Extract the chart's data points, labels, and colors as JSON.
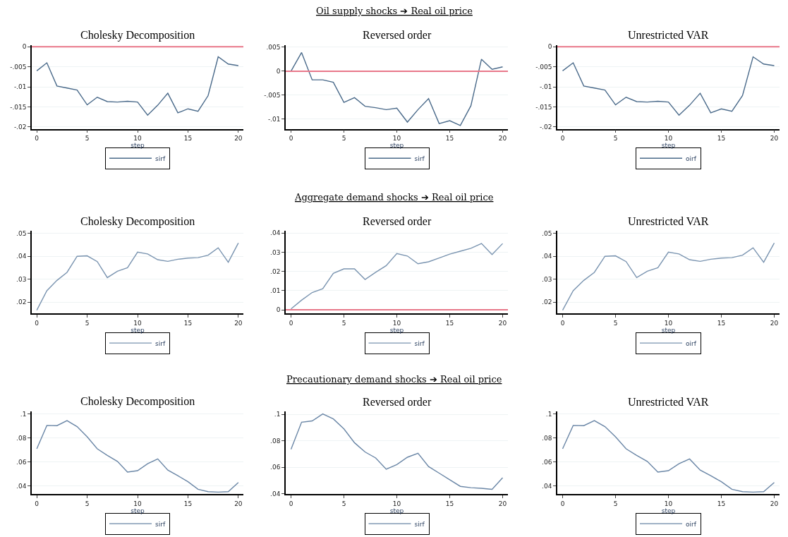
{
  "chart_data": [
    {
      "type": "line",
      "title": "Cholesky Decomposition",
      "annotations": [
        "Oil supply shocks ➔ Real oil price"
      ],
      "xlabel": "step",
      "x": [
        0,
        1,
        2,
        3,
        4,
        5,
        6,
        7,
        8,
        9,
        10,
        11,
        12,
        13,
        14,
        15,
        16,
        17,
        18,
        19,
        20
      ],
      "xlim": [
        -0.5,
        20.5
      ],
      "xticks": [
        0,
        5,
        10,
        15,
        20
      ],
      "ylim": [
        -0.0205,
        0.0005
      ],
      "yticks": [
        {
          "value": 0,
          "label": "0"
        },
        {
          "value": -0.005,
          "label": "-.005"
        },
        {
          "value": -0.01,
          "label": "-.01"
        },
        {
          "value": -0.015,
          "label": "-.015"
        },
        {
          "value": -0.02,
          "label": "-.02"
        }
      ],
      "grid": "y",
      "legend": "bottom",
      "ref_lines": [
        {
          "axis": "y",
          "value": 0,
          "color": "#e8788a"
        }
      ],
      "series": [
        {
          "name": "sirf",
          "color": "#4a6a8a",
          "values": [
            -0.006,
            -0.004,
            -0.0098,
            -0.0103,
            -0.0108,
            -0.0145,
            -0.0126,
            -0.0137,
            -0.0138,
            -0.0136,
            -0.0138,
            -0.0171,
            -0.0146,
            -0.0116,
            -0.0165,
            -0.0155,
            -0.0161,
            -0.0122,
            -0.0025,
            -0.0043,
            -0.0047
          ]
        }
      ]
    },
    {
      "type": "line",
      "title": "Reversed order",
      "xlabel": "step",
      "x": [
        0,
        1,
        2,
        3,
        4,
        5,
        6,
        7,
        8,
        9,
        10,
        11,
        12,
        13,
        14,
        15,
        16,
        17,
        18,
        19,
        20
      ],
      "xlim": [
        -0.5,
        20.5
      ],
      "xticks": [
        0,
        5,
        10,
        15,
        20
      ],
      "ylim": [
        -0.012,
        0.0055
      ],
      "yticks": [
        {
          "value": 0.005,
          "label": ".005"
        },
        {
          "value": 0,
          "label": "0"
        },
        {
          "value": -0.005,
          "label": "-.005"
        },
        {
          "value": -0.01,
          "label": "-.01"
        }
      ],
      "grid": "y",
      "legend": "bottom",
      "ref_lines": [
        {
          "axis": "y",
          "value": 0,
          "color": "#e8788a"
        }
      ],
      "series": [
        {
          "name": "sirf",
          "color": "#4a6a8a",
          "values": [
            0,
            0.0039,
            -0.0018,
            -0.0018,
            -0.0023,
            -0.0065,
            -0.0055,
            -0.0073,
            -0.0076,
            -0.008,
            -0.0077,
            -0.0106,
            -0.008,
            -0.0057,
            -0.0109,
            -0.0103,
            -0.0113,
            -0.0072,
            0.0025,
            0.0004,
            0.0009
          ]
        }
      ]
    },
    {
      "type": "line",
      "title": "Unrestricted VAR",
      "xlabel": "step",
      "x": [
        0,
        1,
        2,
        3,
        4,
        5,
        6,
        7,
        8,
        9,
        10,
        11,
        12,
        13,
        14,
        15,
        16,
        17,
        18,
        19,
        20
      ],
      "xlim": [
        -0.5,
        20.5
      ],
      "xticks": [
        0,
        5,
        10,
        15,
        20
      ],
      "ylim": [
        -0.0205,
        0.0005
      ],
      "yticks": [
        {
          "value": 0,
          "label": "0"
        },
        {
          "value": -0.005,
          "label": "-.005"
        },
        {
          "value": -0.01,
          "label": "-.01"
        },
        {
          "value": -0.015,
          "label": "-.015"
        },
        {
          "value": -0.02,
          "label": "-.02"
        }
      ],
      "grid": "y",
      "legend": "bottom",
      "ref_lines": [
        {
          "axis": "y",
          "value": 0,
          "color": "#e8788a"
        }
      ],
      "series": [
        {
          "name": "oirf",
          "color": "#4a6a8a",
          "values": [
            -0.006,
            -0.004,
            -0.0098,
            -0.0103,
            -0.0108,
            -0.0145,
            -0.0126,
            -0.0137,
            -0.0138,
            -0.0136,
            -0.0138,
            -0.0171,
            -0.0146,
            -0.0116,
            -0.0165,
            -0.0155,
            -0.0161,
            -0.0122,
            -0.0025,
            -0.0043,
            -0.0047
          ]
        }
      ]
    },
    {
      "type": "line",
      "title": "Cholesky Decomposition",
      "annotations": [
        "Aggregate demand shocks ➔ Real oil price"
      ],
      "xlabel": "step",
      "x": [
        0,
        1,
        2,
        3,
        4,
        5,
        6,
        7,
        8,
        9,
        10,
        11,
        12,
        13,
        14,
        15,
        16,
        17,
        18,
        19,
        20
      ],
      "xlim": [
        -0.5,
        20.5
      ],
      "xticks": [
        0,
        5,
        10,
        15,
        20
      ],
      "ylim": [
        0.015,
        0.051
      ],
      "yticks": [
        {
          "value": 0.02,
          "label": ".02"
        },
        {
          "value": 0.03,
          "label": ".03"
        },
        {
          "value": 0.04,
          "label": ".04"
        },
        {
          "value": 0.05,
          "label": ".05"
        }
      ],
      "grid": "y",
      "legend": "bottom",
      "series": [
        {
          "name": "sirf",
          "color": "#7a94b0",
          "values": [
            0.0165,
            0.025,
            0.0295,
            0.033,
            0.04,
            0.0402,
            0.0377,
            0.0307,
            0.0335,
            0.035,
            0.0418,
            0.041,
            0.0385,
            0.0378,
            0.0387,
            0.0392,
            0.0394,
            0.0405,
            0.0437,
            0.0374,
            0.0458
          ]
        }
      ]
    },
    {
      "type": "line",
      "title": "Reversed order",
      "xlabel": "step",
      "x": [
        0,
        1,
        2,
        3,
        4,
        5,
        6,
        7,
        8,
        9,
        10,
        11,
        12,
        13,
        14,
        15,
        16,
        17,
        18,
        19,
        20
      ],
      "xlim": [
        -0.5,
        20.5
      ],
      "xticks": [
        0,
        5,
        10,
        15,
        20
      ],
      "ylim": [
        -0.002,
        0.041
      ],
      "yticks": [
        {
          "value": 0,
          "label": "0"
        },
        {
          "value": 0.01,
          "label": ".01"
        },
        {
          "value": 0.02,
          "label": ".02"
        },
        {
          "value": 0.03,
          "label": ".03"
        },
        {
          "value": 0.04,
          "label": ".04"
        }
      ],
      "grid": "y",
      "legend": "bottom",
      "ref_lines": [
        {
          "axis": "y",
          "value": 0,
          "color": "#e8788a"
        }
      ],
      "series": [
        {
          "name": "sirf",
          "color": "#7a94b0",
          "values": [
            0.0005,
            0.005,
            0.009,
            0.011,
            0.019,
            0.0213,
            0.0213,
            0.0158,
            0.0195,
            0.023,
            0.0293,
            0.028,
            0.024,
            0.025,
            0.027,
            0.029,
            0.0305,
            0.032,
            0.0345,
            0.0288,
            0.0345
          ]
        }
      ]
    },
    {
      "type": "line",
      "title": "Unrestricted VAR",
      "xlabel": "step",
      "x": [
        0,
        1,
        2,
        3,
        4,
        5,
        6,
        7,
        8,
        9,
        10,
        11,
        12,
        13,
        14,
        15,
        16,
        17,
        18,
        19,
        20
      ],
      "xlim": [
        -0.5,
        20.5
      ],
      "xticks": [
        0,
        5,
        10,
        15,
        20
      ],
      "ylim": [
        0.015,
        0.051
      ],
      "yticks": [
        {
          "value": 0.02,
          "label": ".02"
        },
        {
          "value": 0.03,
          "label": ".03"
        },
        {
          "value": 0.04,
          "label": ".04"
        },
        {
          "value": 0.05,
          "label": ".05"
        }
      ],
      "grid": "y",
      "legend": "bottom",
      "series": [
        {
          "name": "oirf",
          "color": "#7a94b0",
          "values": [
            0.0165,
            0.025,
            0.0295,
            0.033,
            0.04,
            0.0402,
            0.0377,
            0.0307,
            0.0335,
            0.035,
            0.0418,
            0.041,
            0.0385,
            0.0378,
            0.0387,
            0.0392,
            0.0394,
            0.0405,
            0.0437,
            0.0374,
            0.0458
          ]
        }
      ]
    },
    {
      "type": "line",
      "title": "Cholesky Decomposition",
      "annotations": [
        "Precautionary demand shocks ➔ Real oil price"
      ],
      "xlabel": "step",
      "x": [
        0,
        1,
        2,
        3,
        4,
        5,
        6,
        7,
        8,
        9,
        10,
        11,
        12,
        13,
        14,
        15,
        16,
        17,
        18,
        19,
        20
      ],
      "xlim": [
        -0.5,
        20.5
      ],
      "xticks": [
        0,
        5,
        10,
        15,
        20
      ],
      "ylim": [
        0.033,
        0.102
      ],
      "yticks": [
        {
          "value": 0.04,
          "label": ".04"
        },
        {
          "value": 0.06,
          "label": ".06"
        },
        {
          "value": 0.08,
          "label": ".08"
        },
        {
          "value": 0.1,
          "label": ".1"
        }
      ],
      "grid": "y",
      "legend": "bottom",
      "series": [
        {
          "name": "sirf",
          "color": "#6a86a6",
          "values": [
            0.071,
            0.0905,
            0.0903,
            0.0945,
            0.0895,
            0.081,
            0.071,
            0.0655,
            0.0605,
            0.0515,
            0.0527,
            0.0585,
            0.0625,
            0.0532,
            0.0485,
            0.0435,
            0.0372,
            0.0352,
            0.0348,
            0.0352,
            0.0428
          ]
        }
      ]
    },
    {
      "type": "line",
      "title": "Reversed order",
      "xlabel": "step",
      "x": [
        0,
        1,
        2,
        3,
        4,
        5,
        6,
        7,
        8,
        9,
        10,
        11,
        12,
        13,
        14,
        15,
        16,
        17,
        18,
        19,
        20
      ],
      "xlim": [
        -0.5,
        20.5
      ],
      "xticks": [
        0,
        5,
        10,
        15,
        20
      ],
      "ylim": [
        0.0395,
        0.102
      ],
      "yticks": [
        {
          "value": 0.04,
          "label": ".04"
        },
        {
          "value": 0.06,
          "label": ".06"
        },
        {
          "value": 0.08,
          "label": ".08"
        },
        {
          "value": 0.1,
          "label": ".1"
        }
      ],
      "grid": "y",
      "legend": "bottom",
      "series": [
        {
          "name": "sirf",
          "color": "#6a86a6",
          "values": [
            0.0735,
            0.094,
            0.095,
            0.1003,
            0.0965,
            0.089,
            0.0785,
            0.0715,
            0.067,
            0.0585,
            0.062,
            0.0675,
            0.0705,
            0.0605,
            0.0555,
            0.0505,
            0.0455,
            0.0445,
            0.044,
            0.0432,
            0.052
          ]
        }
      ]
    },
    {
      "type": "line",
      "title": "Unrestricted VAR",
      "xlabel": "step",
      "x": [
        0,
        1,
        2,
        3,
        4,
        5,
        6,
        7,
        8,
        9,
        10,
        11,
        12,
        13,
        14,
        15,
        16,
        17,
        18,
        19,
        20
      ],
      "xlim": [
        -0.5,
        20.5
      ],
      "xticks": [
        0,
        5,
        10,
        15,
        20
      ],
      "ylim": [
        0.033,
        0.102
      ],
      "yticks": [
        {
          "value": 0.04,
          "label": ".04"
        },
        {
          "value": 0.06,
          "label": ".06"
        },
        {
          "value": 0.08,
          "label": ".08"
        },
        {
          "value": 0.1,
          "label": ".1"
        }
      ],
      "grid": "y",
      "legend": "bottom",
      "series": [
        {
          "name": "oirf",
          "color": "#6a86a6",
          "values": [
            0.071,
            0.0905,
            0.0903,
            0.0945,
            0.0895,
            0.081,
            0.071,
            0.0655,
            0.0605,
            0.0515,
            0.0527,
            0.0585,
            0.0625,
            0.0532,
            0.0485,
            0.0435,
            0.0372,
            0.0352,
            0.0348,
            0.0352,
            0.0428
          ]
        }
      ]
    }
  ]
}
